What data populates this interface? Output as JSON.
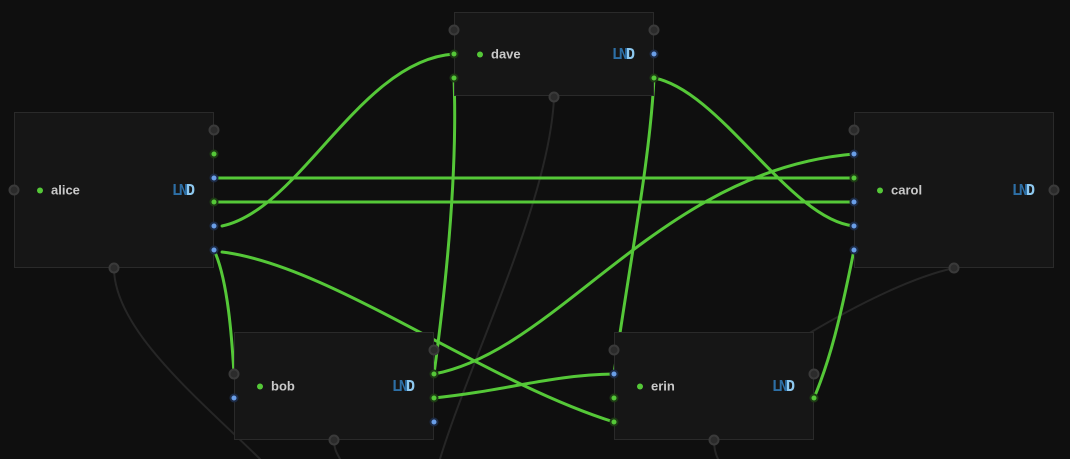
{
  "colors": {
    "background": "#0f0f0f",
    "node_fill": "#161616",
    "node_border": "#2a2a2a",
    "wire_active": "#55c838",
    "wire_idle": "#262626",
    "port_green": "#55c838",
    "port_blue": "#6a9ee8"
  },
  "nodes": [
    {
      "id": "alice",
      "label": "alice",
      "logo_text": "LND",
      "status": "online"
    },
    {
      "id": "dave",
      "label": "dave",
      "logo_text": "LND",
      "status": "online"
    },
    {
      "id": "carol",
      "label": "carol",
      "logo_text": "LND",
      "status": "online"
    },
    {
      "id": "bob",
      "label": "bob",
      "logo_text": "LND",
      "status": "online"
    },
    {
      "id": "erin",
      "label": "erin",
      "logo_text": "LND",
      "status": "online"
    }
  ],
  "channels": [
    {
      "from": "alice",
      "to": "carol"
    },
    {
      "from": "alice",
      "to": "carol"
    },
    {
      "from": "alice",
      "to": "dave"
    },
    {
      "from": "alice",
      "to": "bob"
    },
    {
      "from": "alice",
      "to": "erin"
    },
    {
      "from": "dave",
      "to": "bob"
    },
    {
      "from": "dave",
      "to": "carol"
    },
    {
      "from": "dave",
      "to": "erin"
    },
    {
      "from": "bob",
      "to": "carol"
    },
    {
      "from": "bob",
      "to": "erin"
    },
    {
      "from": "erin",
      "to": "carol"
    }
  ]
}
